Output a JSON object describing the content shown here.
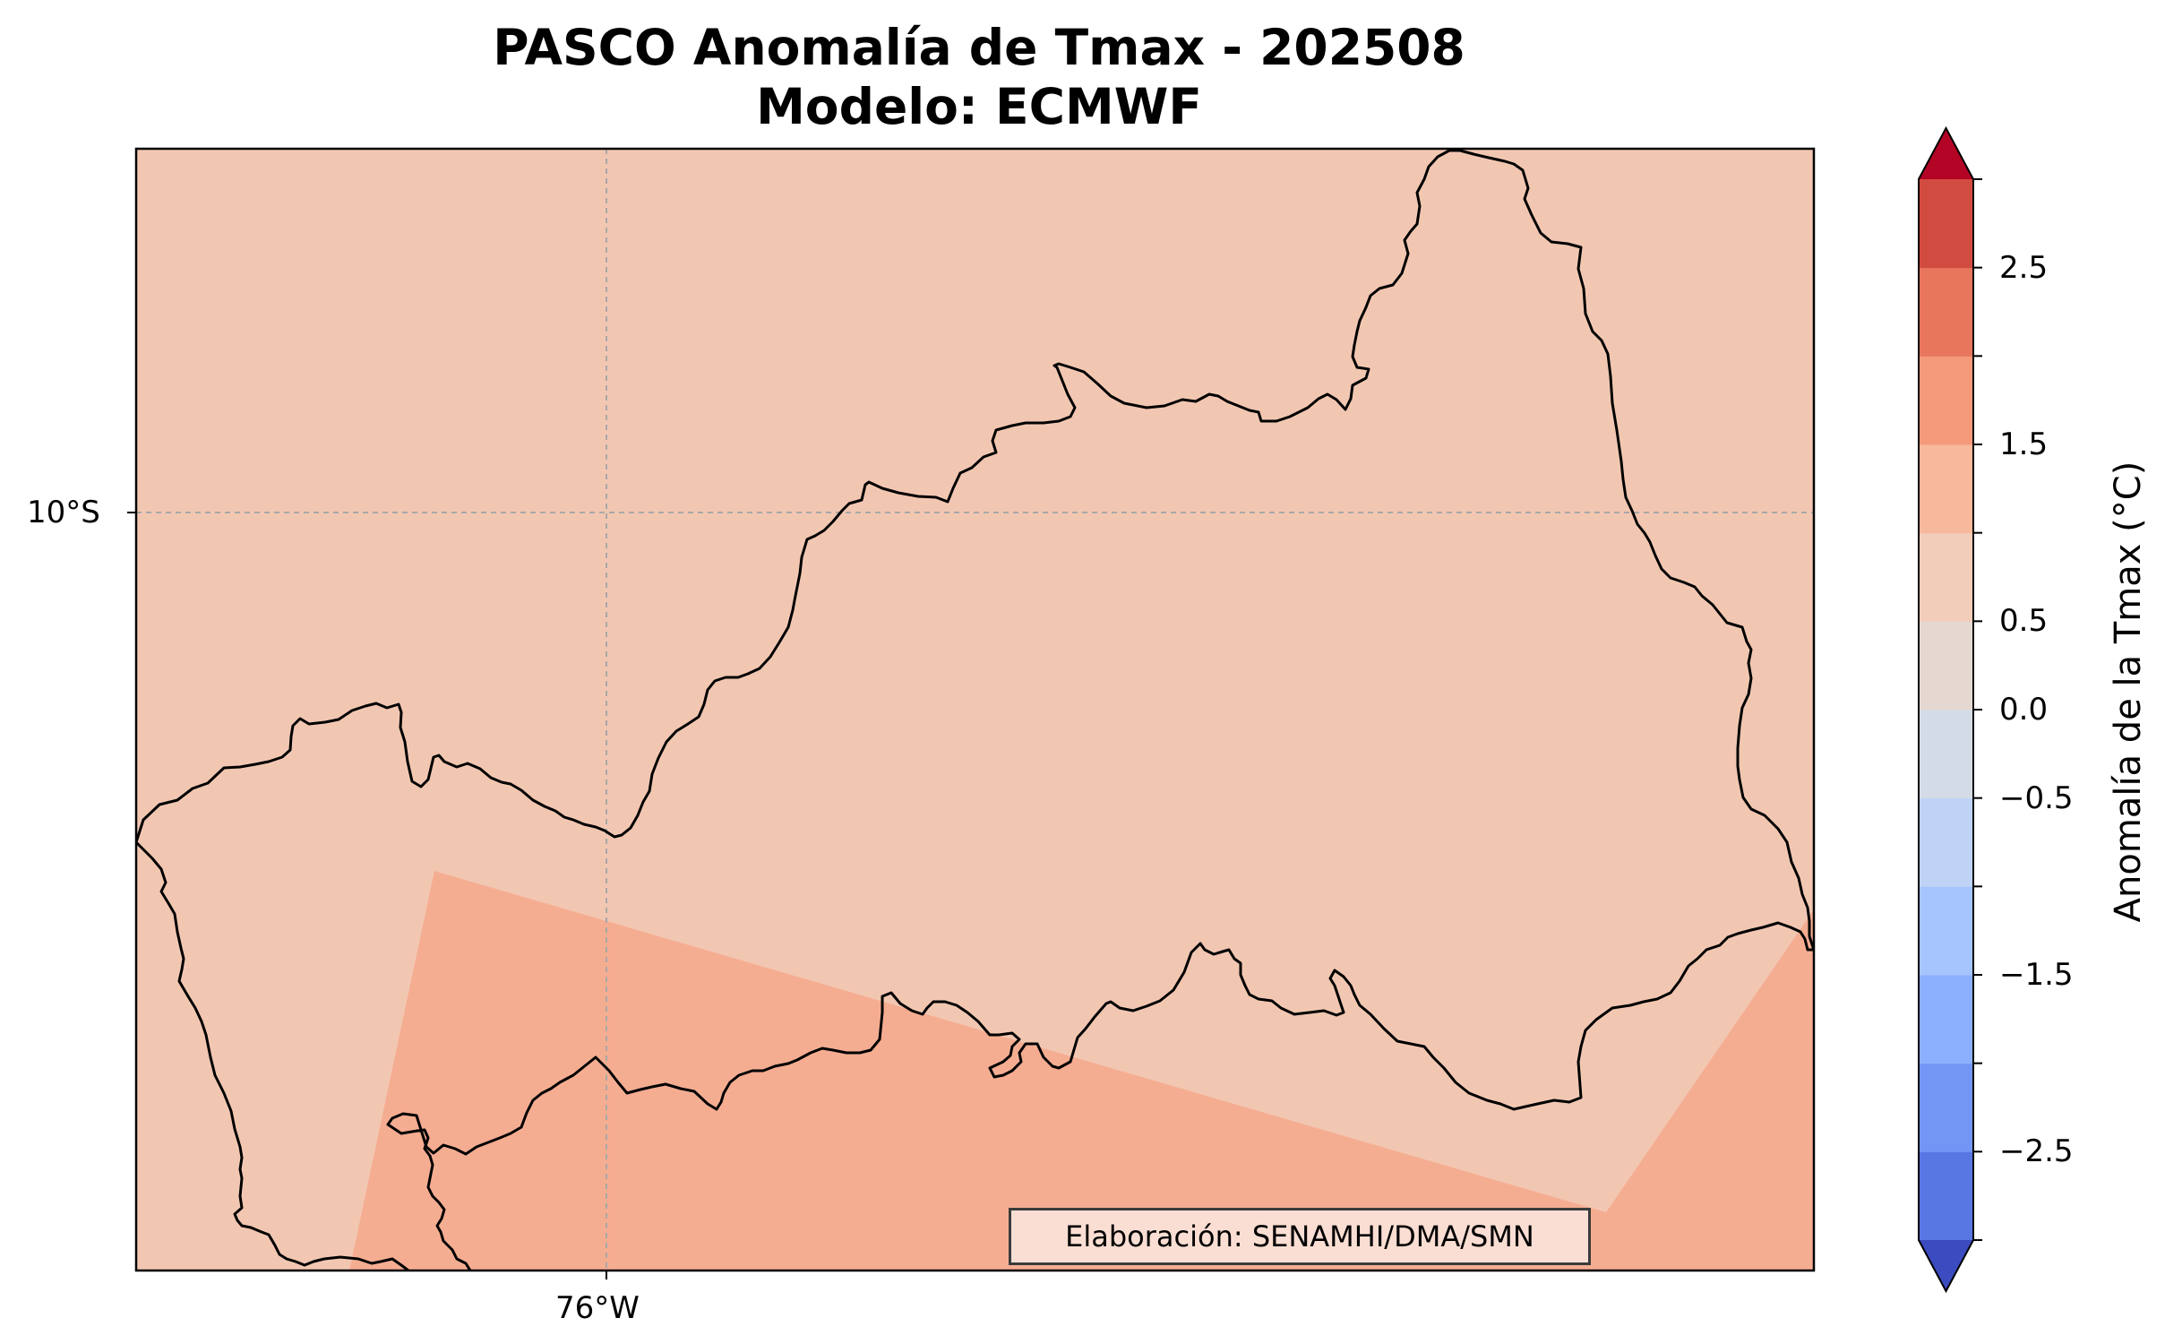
{
  "title": {
    "line1": "PASCO Anomalía de Tmax - 202508",
    "line2": "Modelo: ECMWF"
  },
  "map": {
    "gridlines": {
      "latitude_label": "10°S",
      "longitude_label": "76°W",
      "style": "dashed-grey"
    },
    "fill_colors": {
      "region_0_to_0.5": "#f2c7b2",
      "region_0.5_to_1.0": "#f5ad92"
    },
    "outline_color": "#000000",
    "credit": "Elaboración: SENAMHI/DMA/SMN"
  },
  "colorbar": {
    "label": "Anomalía de la Tmax (°C)",
    "tick_labels": [
      "2.5",
      "1.5",
      "0.5",
      "0.0",
      "−0.5",
      "−1.5",
      "−2.5"
    ],
    "bounds": [
      -3.0,
      -2.5,
      -2.0,
      -1.5,
      -1.0,
      -0.5,
      0.0,
      0.5,
      1.0,
      1.5,
      2.0,
      2.5,
      3.0
    ],
    "extend": "both",
    "colormap": "coolwarm",
    "colors_top_to_bottom": [
      "#b40426",
      "#d24b40",
      "#e8765c",
      "#f49a7b",
      "#f7b89c",
      "#f1cdba",
      "#e5d8d1",
      "#d3dbe7",
      "#bfd3f6",
      "#a6c4fe",
      "#8db0fe",
      "#7396f5",
      "#5977e3",
      "#3b4cc0"
    ]
  }
}
